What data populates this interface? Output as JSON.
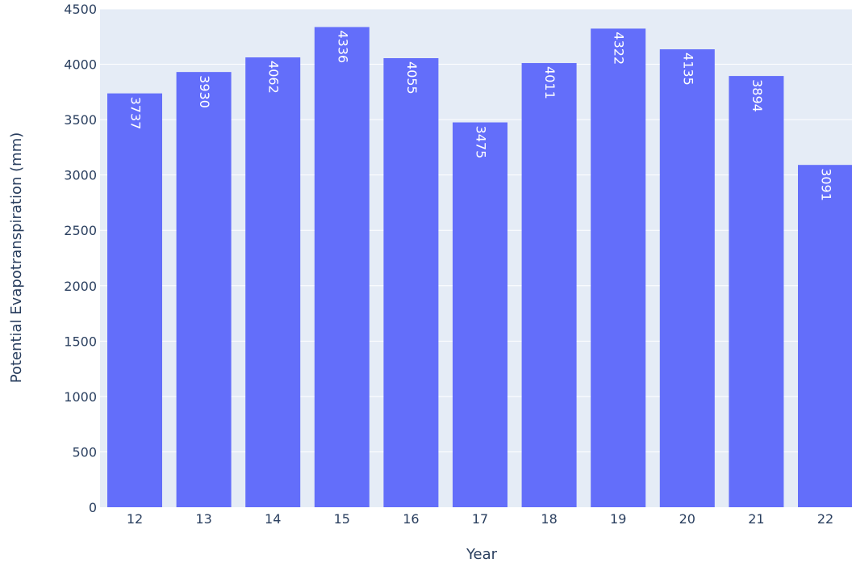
{
  "chart_data": {
    "type": "bar",
    "categories": [
      "12",
      "13",
      "14",
      "15",
      "16",
      "17",
      "18",
      "19",
      "20",
      "21",
      "22"
    ],
    "values": [
      3737,
      3930,
      4062,
      4336,
      4055,
      3475,
      4011,
      4322,
      4135,
      3894,
      3091
    ],
    "data_labels": [
      "3737",
      "3930",
      "4062",
      "4336",
      "4055",
      "3475",
      "4011",
      "4322",
      "4135",
      "3894",
      "3091"
    ],
    "xlabel": "Year",
    "ylabel": "Potential Evapotranspiration (mm)",
    "ylim": [
      0,
      4500
    ],
    "yticks": [
      0,
      500,
      1000,
      1500,
      2000,
      2500,
      3000,
      3500,
      4000,
      4500
    ],
    "ytick_labels": [
      "0",
      "500",
      "1000",
      "1500",
      "2000",
      "2500",
      "3000",
      "3500",
      "4000",
      "4500"
    ],
    "grid": true,
    "legend": "none",
    "colors": {
      "bar": "#636efa",
      "plot_background": "#e5ecf6",
      "grid": "#ffffff",
      "text": "#2a3f5f",
      "bar_label": "#ffffff"
    }
  }
}
